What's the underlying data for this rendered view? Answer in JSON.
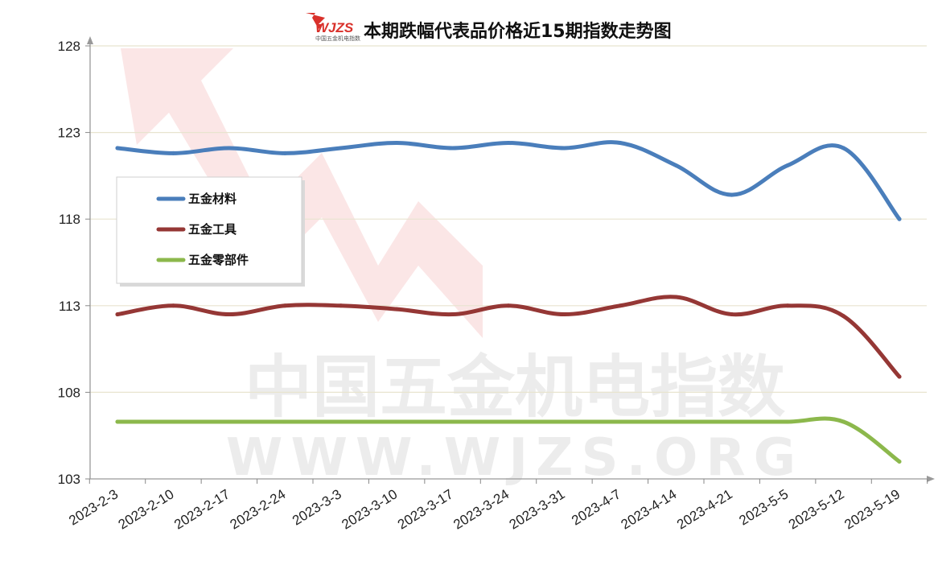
{
  "chart_data": {
    "type": "line",
    "title": "本期跌幅代表品价格近15期指数走势图",
    "logo_text": "WJZS",
    "logo_subtext": "中国五金机电指数",
    "watermark": {
      "line1": "中国五金机电指数",
      "line2": "WWW.WJZS.ORG"
    },
    "categories": [
      "2023-2-3",
      "2023-2-10",
      "2023-2-17",
      "2023-2-24",
      "2023-3-3",
      "2023-3-10",
      "2023-3-17",
      "2023-3-24",
      "2023-3-31",
      "2023-4-7",
      "2023-4-14",
      "2023-4-21",
      "2023-5-5",
      "2023-5-12",
      "2023-5-19"
    ],
    "ylim": [
      103,
      128
    ],
    "yticks": [
      "103",
      "108",
      "113",
      "118",
      "123",
      "128"
    ],
    "grid": true,
    "legend_position": "left, upper",
    "series": [
      {
        "name": "五金材料",
        "color": "#4a7ebb",
        "values": [
          122.1,
          121.8,
          122.1,
          121.8,
          122.1,
          122.4,
          122.1,
          122.4,
          122.1,
          122.4,
          121.1,
          119.4,
          121.1,
          122.1,
          118.0
        ]
      },
      {
        "name": "五金工具",
        "color": "#953735",
        "values": [
          112.5,
          113.0,
          112.5,
          113.0,
          113.0,
          112.8,
          112.5,
          113.0,
          112.5,
          113.0,
          113.5,
          112.5,
          113.0,
          112.4,
          108.9
        ]
      },
      {
        "name": "五金零部件",
        "color": "#8cb84c",
        "values": [
          106.3,
          106.3,
          106.3,
          106.3,
          106.3,
          106.3,
          106.3,
          106.3,
          106.3,
          106.3,
          106.3,
          106.3,
          106.3,
          106.3,
          104.0
        ]
      }
    ]
  }
}
